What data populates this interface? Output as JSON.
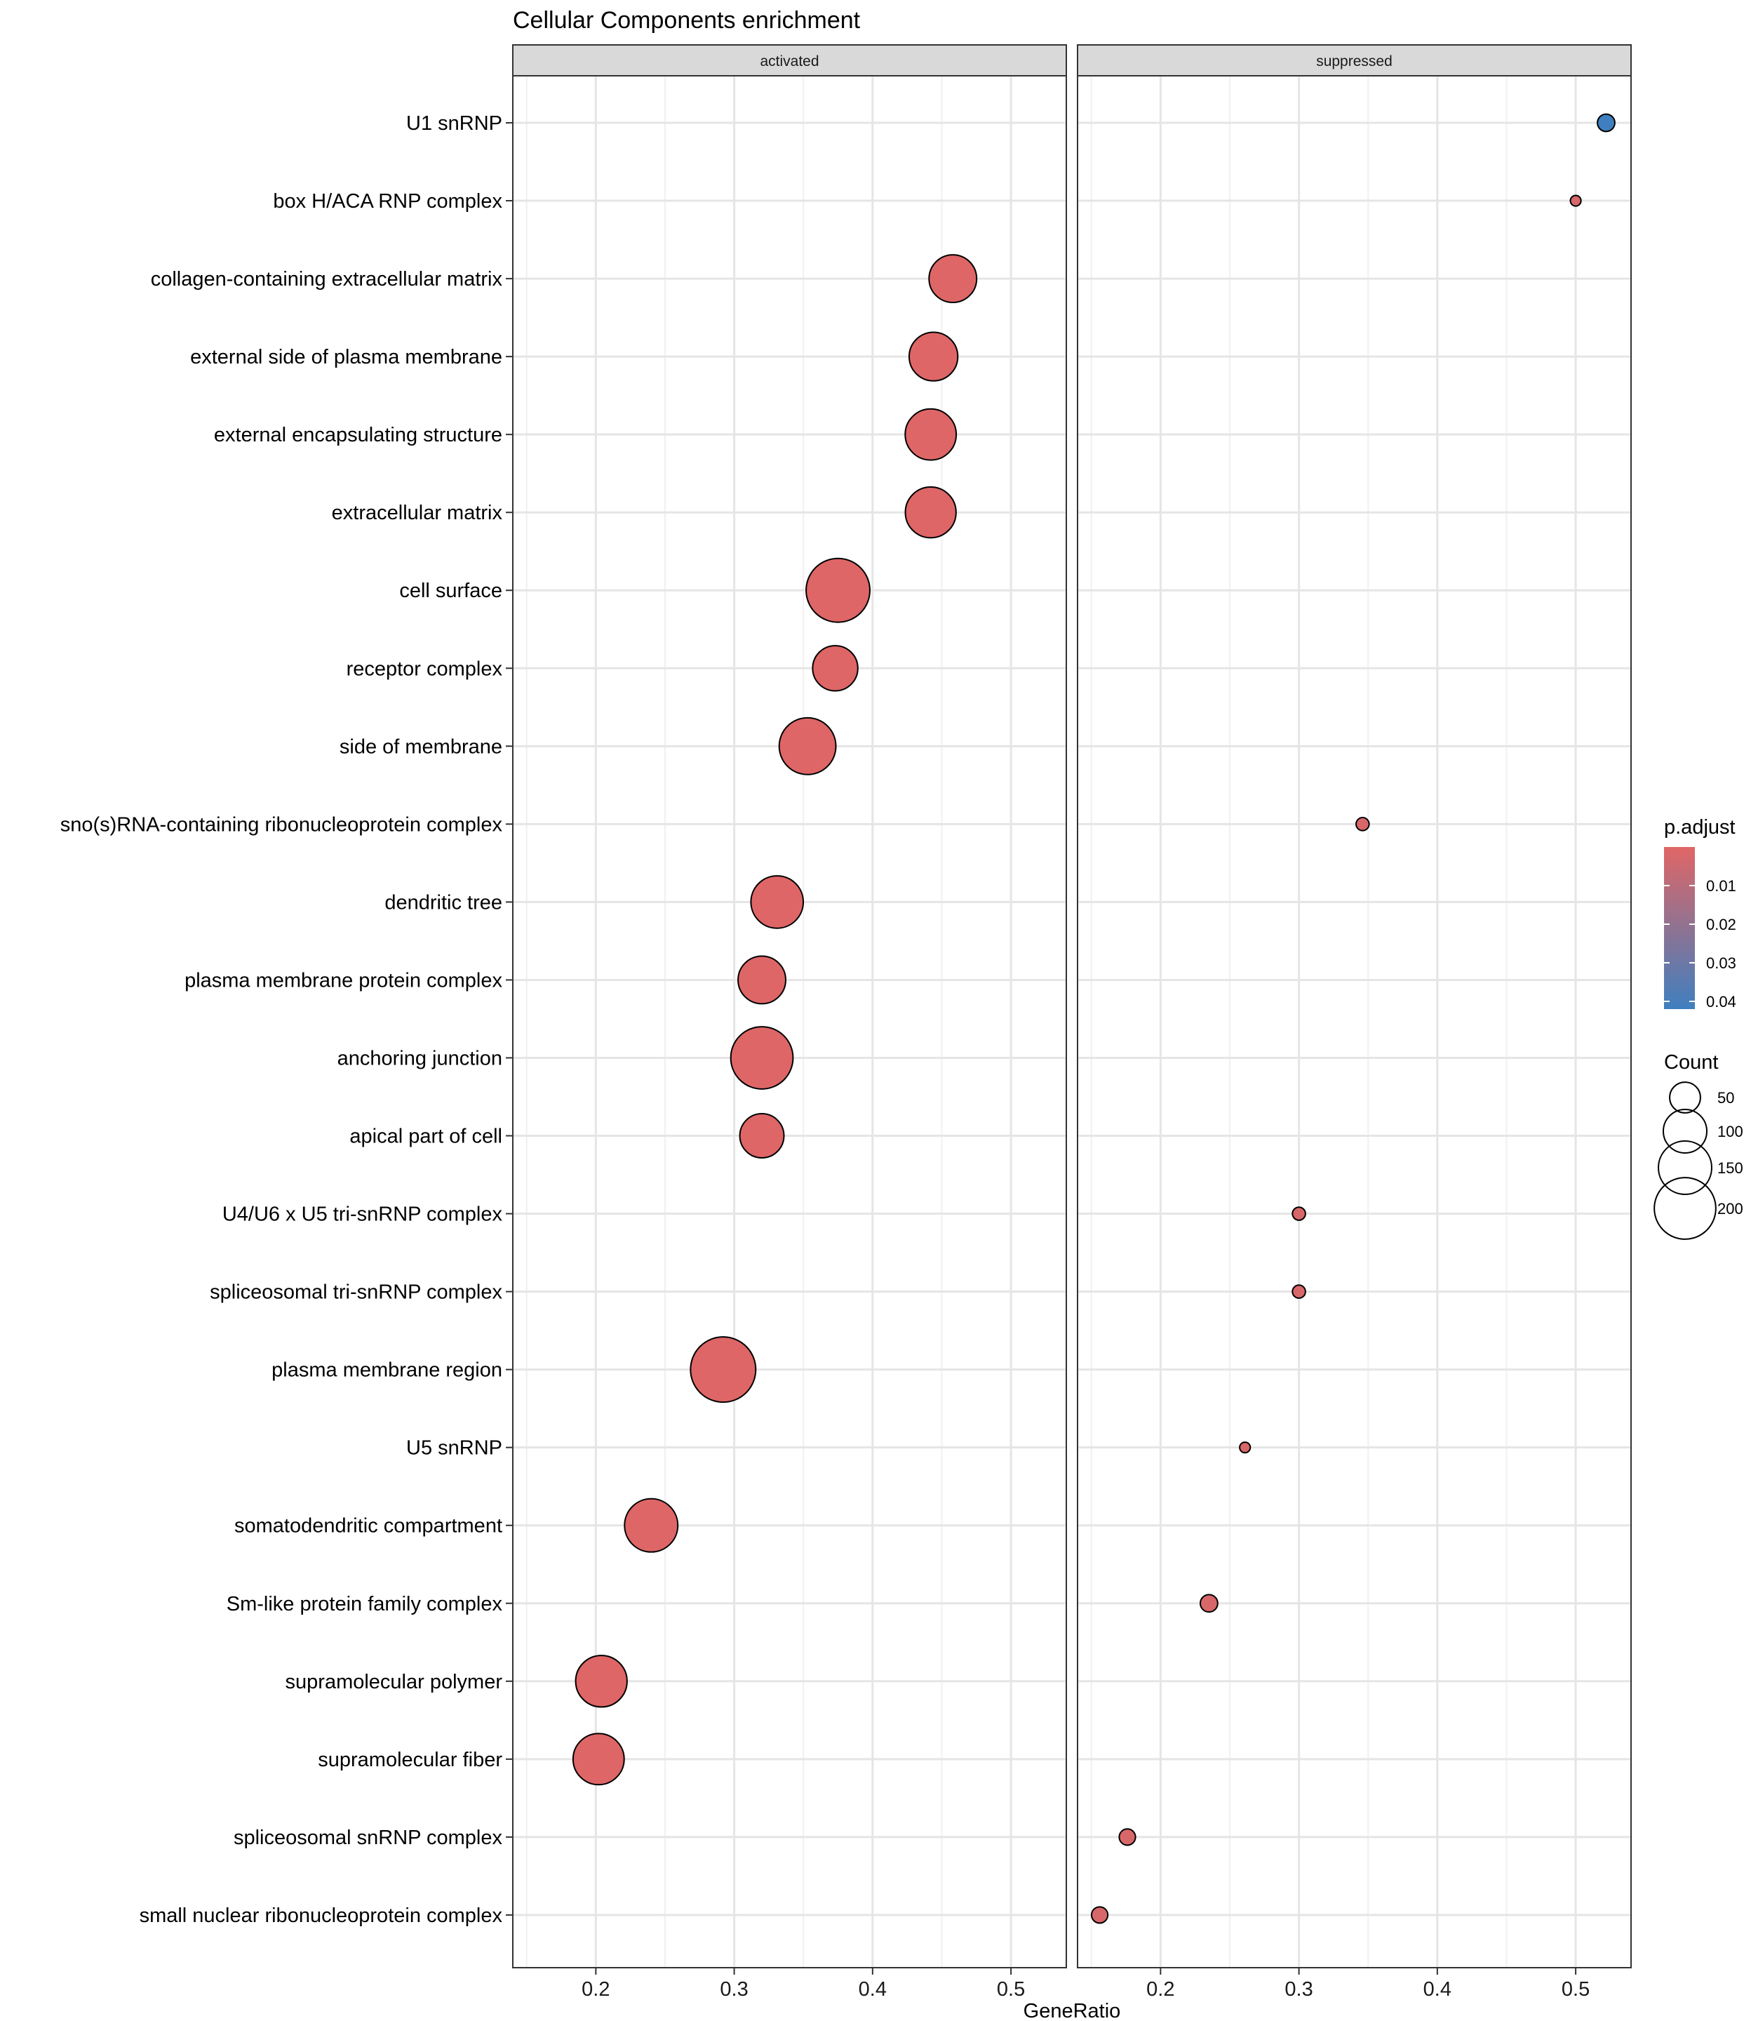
{
  "chart_data": {
    "type": "scatter",
    "title": "Cellular Components enrichment",
    "xlabel": "GeneRatio",
    "ylabel": "",
    "xlim": [
      0.14,
      0.54
    ],
    "xticks": [
      0.2,
      0.3,
      0.4,
      0.5
    ],
    "xtick_labels": [
      "0.2",
      "0.3",
      "0.4",
      "0.5"
    ],
    "grid": true,
    "facets": [
      "activated",
      "suppressed"
    ],
    "categories": [
      "U1 snRNP",
      "box H/ACA RNP complex",
      "collagen-containing extracellular matrix",
      "external side of plasma membrane",
      "external encapsulating structure",
      "extracellular matrix",
      "cell surface",
      "receptor complex",
      "side of membrane",
      "sno(s)RNA-containing ribonucleoprotein complex",
      "dendritic tree",
      "plasma membrane protein complex",
      "anchoring junction",
      "apical part of cell",
      "U4/U6 x U5 tri-snRNP complex",
      "spliceosomal tri-snRNP complex",
      "plasma membrane region",
      "U5 snRNP",
      "somatodendritic compartment",
      "Sm-like protein family complex",
      "supramolecular polymer",
      "supramolecular fiber",
      "spliceosomal snRNP complex",
      "small nuclear ribonucleoprotein complex"
    ],
    "points": [
      {
        "facet": "suppressed",
        "term": "U1 snRNP",
        "gene_ratio": 0.522,
        "count": 16,
        "p_adjust": 0.042
      },
      {
        "facet": "suppressed",
        "term": "box H/ACA RNP complex",
        "gene_ratio": 0.5,
        "count": 6,
        "p_adjust": 0.002
      },
      {
        "facet": "activated",
        "term": "collagen-containing extracellular matrix",
        "gene_ratio": 0.458,
        "count": 120,
        "p_adjust": 0.0005
      },
      {
        "facet": "activated",
        "term": "external side of plasma membrane",
        "gene_ratio": 0.444,
        "count": 125,
        "p_adjust": 0.0005
      },
      {
        "facet": "activated",
        "term": "external encapsulating structure",
        "gene_ratio": 0.442,
        "count": 138,
        "p_adjust": 0.0005
      },
      {
        "facet": "activated",
        "term": "extracellular matrix",
        "gene_ratio": 0.442,
        "count": 136,
        "p_adjust": 0.0005
      },
      {
        "facet": "activated",
        "term": "cell surface",
        "gene_ratio": 0.375,
        "count": 215,
        "p_adjust": 0.0005
      },
      {
        "facet": "activated",
        "term": "receptor complex",
        "gene_ratio": 0.373,
        "count": 108,
        "p_adjust": 0.0005
      },
      {
        "facet": "activated",
        "term": "side of membrane",
        "gene_ratio": 0.353,
        "count": 170,
        "p_adjust": 0.0005
      },
      {
        "facet": "suppressed",
        "term": "sno(s)RNA-containing ribonucleoprotein complex",
        "gene_ratio": 0.346,
        "count": 9,
        "p_adjust": 0.002
      },
      {
        "facet": "activated",
        "term": "dendritic tree",
        "gene_ratio": 0.331,
        "count": 145,
        "p_adjust": 0.0005
      },
      {
        "facet": "activated",
        "term": "plasma membrane protein complex",
        "gene_ratio": 0.32,
        "count": 120,
        "p_adjust": 0.0005
      },
      {
        "facet": "activated",
        "term": "anchoring junction",
        "gene_ratio": 0.32,
        "count": 205,
        "p_adjust": 0.0005
      },
      {
        "facet": "activated",
        "term": "apical part of cell",
        "gene_ratio": 0.32,
        "count": 103,
        "p_adjust": 0.0005
      },
      {
        "facet": "suppressed",
        "term": "U4/U6 x U5 tri-snRNP complex",
        "gene_ratio": 0.3,
        "count": 9,
        "p_adjust": 0.002
      },
      {
        "facet": "suppressed",
        "term": "spliceosomal tri-snRNP complex",
        "gene_ratio": 0.3,
        "count": 9,
        "p_adjust": 0.002
      },
      {
        "facet": "activated",
        "term": "plasma membrane region",
        "gene_ratio": 0.292,
        "count": 225,
        "p_adjust": 0.0005
      },
      {
        "facet": "suppressed",
        "term": "U5 snRNP",
        "gene_ratio": 0.261,
        "count": 6,
        "p_adjust": 0.002
      },
      {
        "facet": "activated",
        "term": "somatodendritic compartment",
        "gene_ratio": 0.24,
        "count": 150,
        "p_adjust": 0.0005
      },
      {
        "facet": "suppressed",
        "term": "Sm-like protein family complex",
        "gene_ratio": 0.235,
        "count": 16,
        "p_adjust": 0.002
      },
      {
        "facet": "activated",
        "term": "supramolecular polymer",
        "gene_ratio": 0.204,
        "count": 140,
        "p_adjust": 0.0005
      },
      {
        "facet": "activated",
        "term": "supramolecular fiber",
        "gene_ratio": 0.202,
        "count": 138,
        "p_adjust": 0.0005
      },
      {
        "facet": "suppressed",
        "term": "spliceosomal snRNP complex",
        "gene_ratio": 0.176,
        "count": 14,
        "p_adjust": 0.002
      },
      {
        "facet": "suppressed",
        "term": "small nuclear ribonucleoprotein complex",
        "gene_ratio": 0.156,
        "count": 14,
        "p_adjust": 0.002
      }
    ],
    "color_legend": {
      "title": "p.adjust",
      "domain": [
        0.0,
        0.042
      ],
      "ticks": [
        0.01,
        0.02,
        0.03,
        0.04
      ],
      "tick_labels": [
        "0.01",
        "0.02",
        "0.03",
        "0.04"
      ],
      "low_color": "#e06666",
      "high_color": "#3f7fbf"
    },
    "size_legend": {
      "title": "Count",
      "values": [
        50,
        100,
        150,
        200
      ],
      "labels": [
        "50",
        "100",
        "150",
        "200"
      ]
    }
  }
}
